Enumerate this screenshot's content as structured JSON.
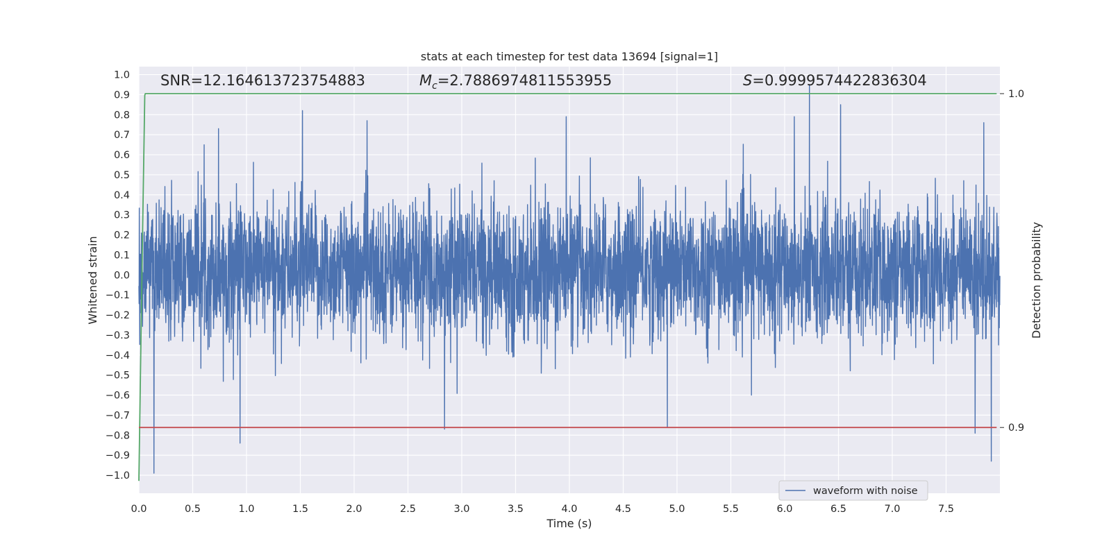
{
  "chart_data": {
    "type": "line",
    "title": "stats at each timestep for test data 13694 [signal=1]",
    "xlabel": "Time (s)",
    "ylabel": "Whitened strain",
    "y2label": "Detection probability",
    "xlim": [
      0.0,
      8.0
    ],
    "ylim": [
      -1.09,
      1.04
    ],
    "y2lim": [
      0.8803,
      1.0081
    ],
    "grid": true,
    "legend_position": "lower center",
    "xticks": [
      "0.0",
      "0.5",
      "1.0",
      "1.5",
      "2.0",
      "2.5",
      "3.0",
      "3.5",
      "4.0",
      "4.5",
      "5.0",
      "5.5",
      "6.0",
      "6.5",
      "7.0",
      "7.5"
    ],
    "xtick_values": [
      0.0,
      0.5,
      1.0,
      1.5,
      2.0,
      2.5,
      3.0,
      3.5,
      4.0,
      4.5,
      5.0,
      5.5,
      6.0,
      6.5,
      7.0,
      7.5
    ],
    "yticks": [
      "1.0",
      "0.9",
      "0.8",
      "0.7",
      "0.6",
      "0.5",
      "0.4",
      "0.3",
      "0.2",
      "0.1",
      "0.0",
      "−0.1",
      "−0.2",
      "−0.3",
      "−0.4",
      "−0.5",
      "−0.6",
      "−0.7",
      "−0.8",
      "−0.9",
      "−1.0"
    ],
    "ytick_values": [
      1.0,
      0.9,
      0.8,
      0.7,
      0.6,
      0.5,
      0.4,
      0.3,
      0.2,
      0.1,
      0.0,
      -0.1,
      -0.2,
      -0.3,
      -0.4,
      -0.5,
      -0.6,
      -0.7,
      -0.8,
      -0.9,
      -1.0
    ],
    "y2ticks": [
      "1.0",
      "0.9"
    ],
    "y2tick_values": [
      1.0,
      0.9
    ],
    "annotations": {
      "snr": "SNR=12.164613723754883",
      "mc_symbol": "M",
      "mc_sub": "c",
      "mc_value": "=2.7886974811553955",
      "s_symbol": "S",
      "s_value": "=0.9999574422836304"
    },
    "series": [
      {
        "name": "waveform with noise",
        "axis": "left",
        "color": "#4c72b0",
        "style": "noisy waveform, 0.0–8.0 s",
        "duration": 8.0,
        "envelope": {
          "typical_max": 0.55,
          "typical_min": -0.5
        },
        "notable_peaks": [
          {
            "x": 1.52,
            "y": 0.82
          },
          {
            "x": 6.23,
            "y": 0.95
          },
          {
            "x": 6.52,
            "y": 0.85
          },
          {
            "x": 3.97,
            "y": 0.79
          },
          {
            "x": 2.12,
            "y": 0.77
          },
          {
            "x": 0.74,
            "y": 0.73
          },
          {
            "x": 7.85,
            "y": 0.76
          },
          {
            "x": 6.09,
            "y": 0.79
          },
          {
            "x": 0.14,
            "y": -0.99
          },
          {
            "x": 0.94,
            "y": -0.84
          },
          {
            "x": 7.92,
            "y": -0.93
          },
          {
            "x": 2.84,
            "y": -0.77
          },
          {
            "x": 4.91,
            "y": -0.76
          },
          {
            "x": 7.77,
            "y": -0.79
          }
        ]
      },
      {
        "name": "",
        "axis": "right",
        "color": "#55a868",
        "points": [
          [
            0.0,
            0.884
          ],
          [
            0.03,
            0.95
          ],
          [
            0.055,
            0.9995
          ],
          [
            0.06,
            1.0
          ],
          [
            7.97,
            1.0
          ]
        ]
      },
      {
        "name": "",
        "axis": "right",
        "color": "#c44e52",
        "points": [
          [
            0.0,
            0.9
          ],
          [
            7.97,
            0.9
          ]
        ]
      }
    ]
  }
}
